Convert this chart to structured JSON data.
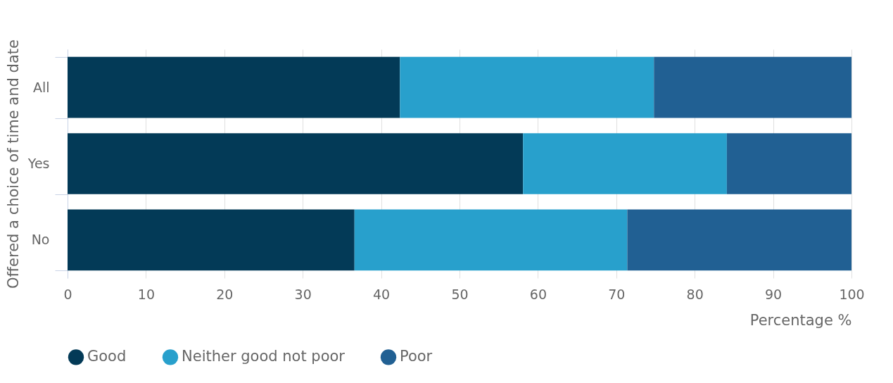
{
  "chart_data": {
    "type": "bar",
    "orientation": "horizontal",
    "stacked": true,
    "xlabel": "Percentage %",
    "ylabel": "Offered a choice of time and date",
    "categories": [
      "All",
      "Yes",
      "No"
    ],
    "series": [
      {
        "name": "Good",
        "color": "#033a57",
        "values": [
          42.4,
          58.1,
          36.6
        ]
      },
      {
        "name": "Neither good not poor",
        "color": "#28a0cc",
        "values": [
          32.4,
          26.0,
          34.8
        ]
      },
      {
        "name": "Poor",
        "color": "#216093",
        "values": [
          25.2,
          15.9,
          28.6
        ]
      }
    ],
    "xlim": [
      0,
      100
    ],
    "xticks": [
      0,
      10,
      20,
      30,
      40,
      50,
      60,
      70,
      80,
      90,
      100
    ],
    "grid": "x",
    "legend": "bottom"
  }
}
